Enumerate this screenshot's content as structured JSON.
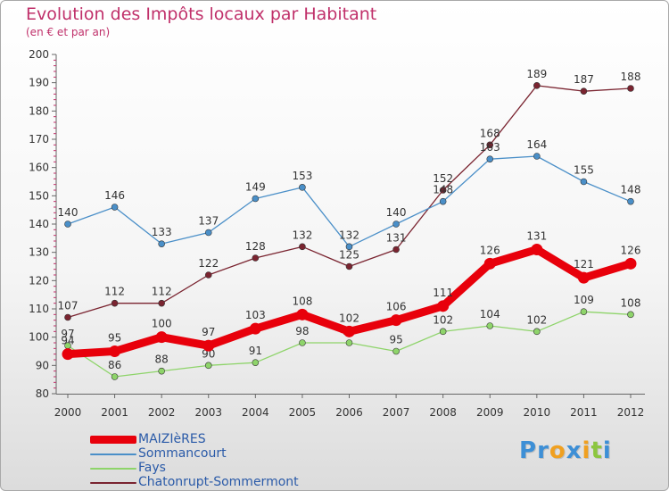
{
  "chart_data": {
    "type": "line",
    "title": "Evolution des Impôts locaux par Habitant",
    "subtitle": "(en € et par an)",
    "xlabel": "",
    "ylabel": "",
    "x": [
      "2000",
      "2001",
      "2002",
      "2003",
      "2004",
      "2005",
      "2006",
      "2007",
      "2008",
      "2009",
      "2010",
      "2011",
      "2012"
    ],
    "ylim": [
      80,
      200
    ],
    "yticks": [
      80,
      90,
      100,
      110,
      120,
      130,
      140,
      150,
      160,
      170,
      180,
      190,
      200
    ],
    "grid": false,
    "legend_position": "bottom-left",
    "series": [
      {
        "name": "MAIZIèRES",
        "color": "#e8000b",
        "values": [
          94,
          95,
          100,
          97,
          103,
          108,
          102,
          106,
          111,
          126,
          131,
          121,
          126
        ]
      },
      {
        "name": "Sommancourt",
        "color": "#4a8fc8",
        "values": [
          140,
          146,
          133,
          137,
          149,
          153,
          132,
          140,
          148,
          163,
          164,
          155,
          148
        ]
      },
      {
        "name": "Fays",
        "color": "#8ed46a",
        "values": [
          97,
          86,
          88,
          90,
          91,
          98,
          98,
          95,
          102,
          104,
          102,
          109,
          108
        ]
      },
      {
        "name": "Chatonrupt-Sommermont",
        "color": "#7a2430",
        "values": [
          107,
          112,
          112,
          122,
          128,
          132,
          125,
          131,
          152,
          168,
          189,
          187,
          188
        ]
      }
    ]
  },
  "brand": {
    "letters": [
      {
        "char": "P",
        "color": "#3d8fd6"
      },
      {
        "char": "r",
        "color": "#3d8fd6"
      },
      {
        "char": "o",
        "color": "#f0a020"
      },
      {
        "char": "x",
        "color": "#3d8fd6"
      },
      {
        "char": "i",
        "color": "#f0a020"
      },
      {
        "char": "t",
        "color": "#8cc63f"
      },
      {
        "char": "i",
        "color": "#3d8fd6"
      }
    ]
  }
}
